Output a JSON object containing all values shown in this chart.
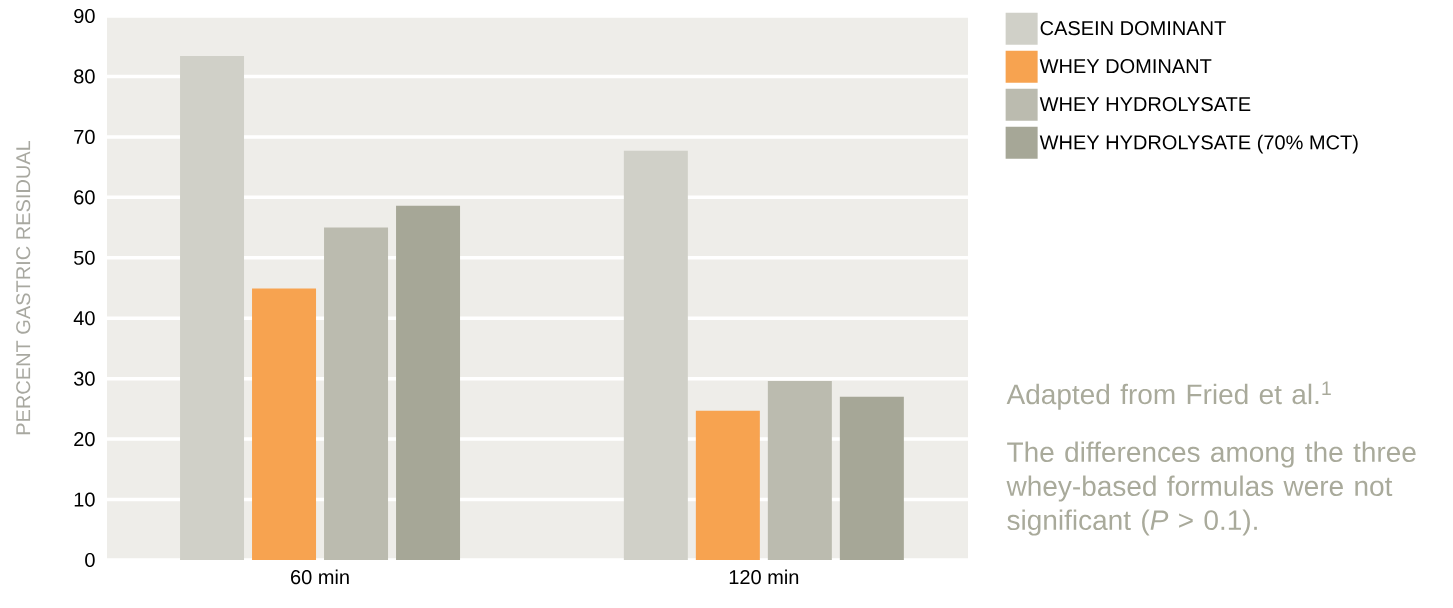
{
  "chart_data": {
    "type": "bar",
    "ylabel": "PERCENT GASTRIC RESIDUAL",
    "categories": [
      "60 min",
      "120 min"
    ],
    "series": [
      {
        "name": "CASEIN DOMINANT",
        "color": "#d0d0c8",
        "values": [
          83.4,
          67.7
        ]
      },
      {
        "name": "WHEY DOMINANT",
        "color": "#f7a350",
        "values": [
          44.9,
          24.7
        ]
      },
      {
        "name": "WHEY HYDROLYSATE",
        "color": "#bbbbaf",
        "values": [
          55,
          29.6
        ]
      },
      {
        "name": "WHEY HYDROLYSATE (70% MCT)",
        "color": "#a6a797",
        "values": [
          58.6,
          27
        ]
      }
    ],
    "ylim": [
      0,
      90
    ],
    "yticks": [
      0,
      10,
      20,
      30,
      40,
      50,
      60,
      70,
      80,
      90
    ],
    "grid": "y",
    "legend": "right",
    "annotations": [
      "Adapted from Fried et al.$^{1}$",
      "The differences among the three whey-based formulas were not significant (*P* > 0.1)."
    ]
  }
}
